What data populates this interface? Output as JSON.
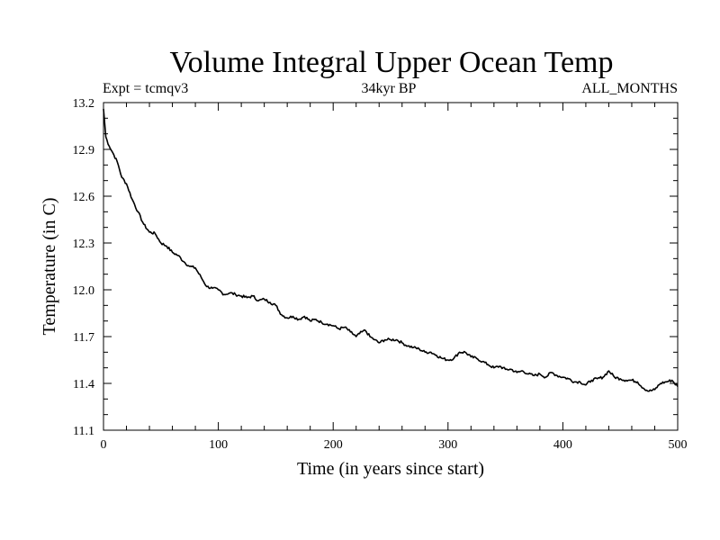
{
  "chart_data": {
    "type": "line",
    "title": "Volume Integral Upper Ocean Temp",
    "subtitle_left": "Expt = tcmqv3",
    "subtitle_center": "34kyr BP",
    "subtitle_right": "ALL_MONTHS",
    "xlabel": "Time (in years since start)",
    "ylabel": "Temperature (in C)",
    "xlim": [
      0,
      500
    ],
    "ylim": [
      11.1,
      13.2
    ],
    "x_ticks": [
      0,
      100,
      200,
      300,
      400,
      500
    ],
    "y_ticks": [
      11.1,
      11.4,
      11.7,
      12.0,
      12.3,
      12.6,
      12.9,
      13.2
    ],
    "x_tick_labels": [
      "0",
      "100",
      "200",
      "300",
      "400",
      "500"
    ],
    "y_tick_labels": [
      "11.1",
      "11.4",
      "11.7",
      "12.0",
      "12.3",
      "12.6",
      "12.9",
      "13.2"
    ],
    "grid": false,
    "line_color": "#000000",
    "series": [
      {
        "x": [
          0,
          2,
          5,
          8,
          12,
          16,
          20,
          25,
          30,
          35,
          40,
          45,
          50,
          55,
          60,
          65,
          70,
          75,
          80,
          85,
          90,
          95,
          100,
          105,
          110,
          115,
          120,
          125,
          130,
          135,
          140,
          145,
          150,
          155,
          160,
          165,
          170,
          175,
          180,
          185,
          190,
          195,
          200,
          205,
          210,
          215,
          220,
          225,
          228,
          232,
          236,
          240,
          245,
          250,
          255,
          260,
          265,
          270,
          275,
          280,
          285,
          290,
          295,
          300,
          305,
          310,
          315,
          320,
          325,
          330,
          335,
          340,
          345,
          350,
          355,
          360,
          365,
          370,
          375,
          380,
          385,
          390,
          395,
          400,
          405,
          410,
          415,
          420,
          425,
          430,
          435,
          440,
          445,
          450,
          455,
          460,
          465,
          470,
          475,
          480,
          485,
          490,
          495,
          500
        ],
        "y": [
          13.16,
          12.98,
          12.92,
          12.88,
          12.82,
          12.72,
          12.68,
          12.58,
          12.5,
          12.42,
          12.37,
          12.36,
          12.3,
          12.28,
          12.24,
          12.22,
          12.18,
          12.15,
          12.14,
          12.08,
          12.02,
          12.01,
          12.0,
          11.97,
          11.98,
          11.97,
          11.96,
          11.95,
          11.96,
          11.93,
          11.94,
          11.92,
          11.9,
          11.84,
          11.82,
          11.83,
          11.81,
          11.83,
          11.8,
          11.81,
          11.79,
          11.78,
          11.77,
          11.75,
          11.76,
          11.73,
          11.7,
          11.73,
          11.74,
          11.7,
          11.68,
          11.66,
          11.68,
          11.68,
          11.68,
          11.66,
          11.64,
          11.63,
          11.62,
          11.6,
          11.6,
          11.58,
          11.56,
          11.55,
          11.56,
          11.6,
          11.6,
          11.57,
          11.56,
          11.54,
          11.52,
          11.5,
          11.51,
          11.49,
          11.49,
          11.47,
          11.48,
          11.46,
          11.45,
          11.46,
          11.44,
          11.47,
          11.45,
          11.44,
          11.43,
          11.41,
          11.41,
          11.39,
          11.42,
          11.43,
          11.44,
          11.48,
          11.44,
          11.43,
          11.42,
          11.42,
          11.41,
          11.37,
          11.35,
          11.36,
          11.4,
          11.41,
          11.42,
          11.38
        ]
      }
    ]
  }
}
